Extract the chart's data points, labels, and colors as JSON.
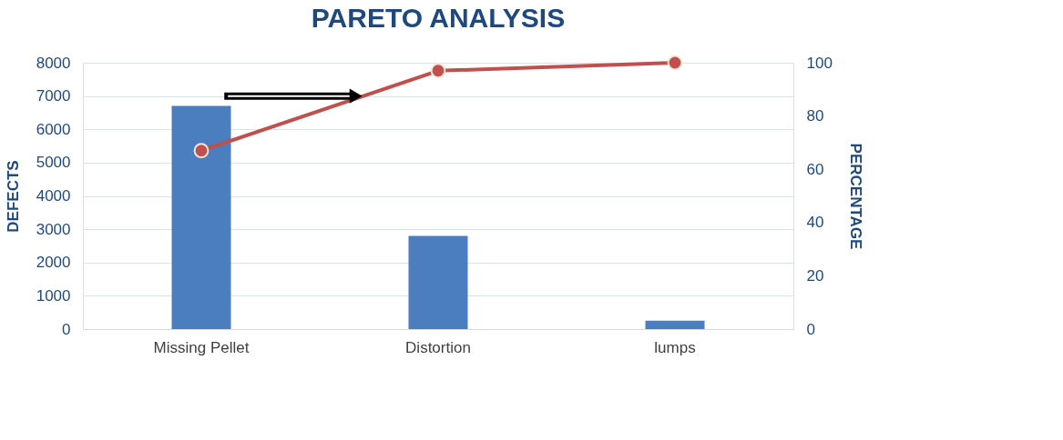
{
  "chart_data": {
    "type": "bar",
    "title": "PARETO ANALYSIS",
    "ylabel": "DEFECTS",
    "y2label": "PERCENTAGE",
    "categories": [
      "Missing Pellet",
      "Distortion",
      "lumps"
    ],
    "series": [
      {
        "color": "#4a7ebf",
        "values": [
          6700,
          2800,
          250
        ]
      },
      {
        "type": "line",
        "axis": "y2",
        "color": "#c0504d",
        "values": [
          67,
          97,
          100
        ],
        "marker": "circle"
      }
    ],
    "ylim": [
      0,
      8000
    ],
    "yticks": [
      0,
      1000,
      2000,
      3000,
      4000,
      5000,
      6000,
      7000,
      8000
    ],
    "y2lim": [
      0,
      100
    ],
    "y2ticks": [
      0,
      20,
      40,
      60,
      80,
      100
    ],
    "grid": "y"
  }
}
